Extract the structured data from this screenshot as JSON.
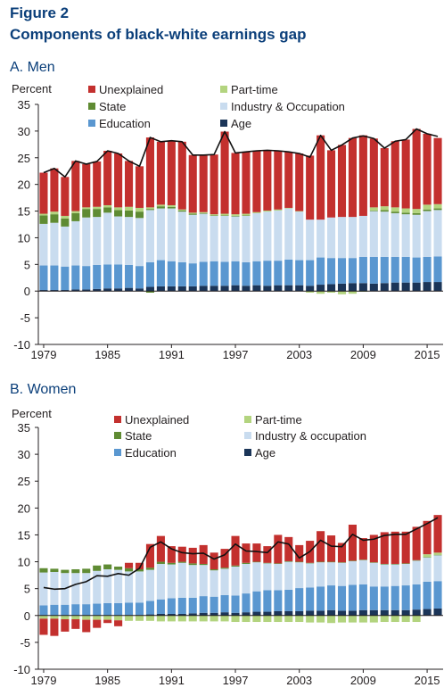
{
  "figure_label": "Figure 2",
  "figure_title": "Components of black-white earnings gap",
  "colors": {
    "Unexplained": "#c3302e",
    "Part-time": "#b3d47f",
    "State": "#5f8b33",
    "Industry": "#c9dcef",
    "Education": "#5a97d0",
    "Age": "#1b3558",
    "line": "#111111"
  },
  "chart_data": [
    {
      "type": "bar",
      "stacked": true,
      "panel_title": "A. Men",
      "ylabel": "Percent",
      "ylim": [
        -10,
        35
      ],
      "yticks": [
        -10,
        -5,
        0,
        5,
        10,
        15,
        20,
        25,
        30,
        35
      ],
      "x": [
        1979,
        1980,
        1981,
        1982,
        1983,
        1984,
        1985,
        1986,
        1987,
        1988,
        1989,
        1990,
        1991,
        1992,
        1993,
        1994,
        1995,
        1996,
        1997,
        1998,
        1999,
        2000,
        2001,
        2002,
        2003,
        2004,
        2005,
        2006,
        2007,
        2008,
        2009,
        2010,
        2011,
        2012,
        2013,
        2014,
        2015,
        2016
      ],
      "xticks": [
        1979,
        1985,
        1991,
        1997,
        2003,
        2009,
        2015
      ],
      "legend": [
        {
          "key": "Unexplained",
          "label": "Unexplained"
        },
        {
          "key": "Part-time",
          "label": "Part-time"
        },
        {
          "key": "State",
          "label": "State"
        },
        {
          "key": "Industry",
          "label": "Industry & Occupation"
        },
        {
          "key": "Education",
          "label": "Education"
        },
        {
          "key": "Age",
          "label": "Age"
        }
      ],
      "series": [
        {
          "key": "Age",
          "values": [
            0.2,
            0.2,
            0.2,
            0.3,
            0.3,
            0.4,
            0.5,
            0.5,
            0.6,
            0.5,
            0.8,
            0.9,
            0.9,
            0.9,
            0.9,
            1.0,
            1.0,
            1.0,
            1.1,
            1.0,
            1.1,
            1.0,
            1.1,
            1.1,
            1.1,
            1.0,
            1.2,
            1.3,
            1.4,
            1.5,
            1.5,
            1.4,
            1.5,
            1.6,
            1.6,
            1.6,
            1.7,
            1.7
          ]
        },
        {
          "key": "Education",
          "values": [
            4.6,
            4.6,
            4.4,
            4.5,
            4.4,
            4.5,
            4.5,
            4.5,
            4.3,
            4.2,
            4.6,
            4.9,
            4.7,
            4.5,
            4.3,
            4.5,
            4.6,
            4.5,
            4.5,
            4.4,
            4.5,
            4.7,
            4.6,
            4.8,
            4.7,
            4.8,
            5.1,
            4.9,
            4.8,
            4.7,
            4.9,
            5.0,
            4.9,
            4.8,
            4.8,
            4.7,
            4.7,
            4.8
          ]
        },
        {
          "key": "Industry",
          "values": [
            7.8,
            8.0,
            7.5,
            8.3,
            9.1,
            9.0,
            9.7,
            9.0,
            9.0,
            9.0,
            9.8,
            9.7,
            9.9,
            9.5,
            9.1,
            9.0,
            8.5,
            8.6,
            8.4,
            8.7,
            9.0,
            9.2,
            9.4,
            9.6,
            9.1,
            7.6,
            7.1,
            7.6,
            7.7,
            7.7,
            7.7,
            8.6,
            8.5,
            8.2,
            8.0,
            8.0,
            8.6,
            8.7
          ]
        },
        {
          "key": "State",
          "values": [
            1.6,
            1.6,
            1.5,
            1.5,
            1.6,
            1.5,
            1.0,
            1.2,
            1.2,
            1.2,
            0.2,
            0.4,
            0.3,
            0.2,
            0.2,
            0.1,
            0.1,
            0.1,
            0.1,
            0.1,
            0.0,
            0.0,
            0.0,
            0.0,
            0.0,
            0.0,
            0.0,
            0.0,
            0.0,
            0.0,
            0.0,
            0.1,
            0.3,
            0.3,
            0.3,
            0.3,
            0.3,
            0.3
          ]
        },
        {
          "key": "Part-time",
          "values": [
            0.3,
            0.5,
            0.5,
            0.4,
            0.3,
            0.4,
            0.4,
            0.5,
            0.7,
            0.7,
            0.3,
            0.3,
            0.3,
            0.2,
            0.2,
            0.2,
            0.2,
            0.3,
            0.3,
            0.3,
            0.2,
            0.2,
            0.2,
            0.1,
            0.1,
            0.0,
            0.0,
            0.0,
            0.0,
            0.0,
            0.0,
            0.6,
            0.7,
            0.8,
            0.8,
            0.8,
            0.9,
            0.8
          ]
        },
        {
          "key": "Unexplained",
          "values": [
            7.7,
            8.1,
            7.3,
            9.4,
            8.1,
            8.5,
            10.2,
            10.1,
            8.6,
            7.8,
            13.1,
            11.8,
            12.1,
            12.7,
            10.8,
            10.7,
            11.2,
            15.4,
            11.5,
            11.6,
            11.5,
            11.3,
            11.0,
            10.5,
            10.8,
            12.0,
            15.8,
            12.6,
            13.5,
            14.8,
            15.1,
            12.9,
            10.9,
            12.4,
            12.9,
            15.0,
            13.3,
            12.4
          ]
        },
        {
          "key": "Part-time",
          "negative": true,
          "values": [
            0,
            0,
            0,
            0,
            0,
            0,
            0,
            0,
            0,
            0,
            0,
            0,
            0,
            0,
            0,
            0,
            0,
            0,
            0,
            0,
            0,
            0,
            0,
            0,
            0,
            -0.3,
            -0.5,
            -0.3,
            -0.6,
            -0.5,
            0,
            0,
            0,
            0,
            0,
            0,
            0,
            0
          ]
        },
        {
          "key": "State",
          "negative": true,
          "values": [
            0,
            0,
            0,
            0,
            0,
            0,
            0,
            0,
            0,
            0,
            -0.3,
            0,
            0,
            0,
            0,
            0,
            0,
            0,
            0,
            0,
            0,
            0,
            0,
            0,
            0,
            0,
            0,
            0,
            0,
            0,
            -0.1,
            0,
            0,
            0,
            0,
            0,
            0,
            0
          ]
        }
      ],
      "total_line": [
        22.2,
        23.0,
        21.4,
        24.4,
        23.8,
        24.3,
        26.3,
        25.8,
        24.4,
        23.4,
        28.8,
        28.0,
        28.2,
        28.0,
        25.5,
        25.5,
        25.6,
        29.9,
        25.9,
        26.1,
        26.3,
        26.4,
        26.3,
        26.1,
        25.8,
        25.1,
        29.2,
        26.4,
        27.4,
        28.7,
        29.1,
        28.6,
        26.8,
        28.1,
        28.4,
        30.4,
        29.5,
        29.0
      ]
    },
    {
      "type": "bar",
      "stacked": true,
      "panel_title": "B. Women",
      "ylabel": "Percent",
      "ylim": [
        -10,
        35
      ],
      "yticks": [
        -10,
        -5,
        0,
        5,
        10,
        15,
        20,
        25,
        30,
        35
      ],
      "x": [
        1979,
        1980,
        1981,
        1982,
        1983,
        1984,
        1985,
        1986,
        1987,
        1988,
        1989,
        1990,
        1991,
        1992,
        1993,
        1994,
        1995,
        1996,
        1997,
        1998,
        1999,
        2000,
        2001,
        2002,
        2003,
        2004,
        2005,
        2006,
        2007,
        2008,
        2009,
        2010,
        2011,
        2012,
        2013,
        2014,
        2015,
        2016
      ],
      "xticks": [
        1979,
        1985,
        1991,
        1997,
        2003,
        2009,
        2015
      ],
      "legend": [
        {
          "key": "Unexplained",
          "label": "Unexplained"
        },
        {
          "key": "Part-time",
          "label": "Part-time"
        },
        {
          "key": "State",
          "label": "State"
        },
        {
          "key": "Industry",
          "label": "Industry & occupation"
        },
        {
          "key": "Education",
          "label": "Education"
        },
        {
          "key": "Age",
          "label": "Age"
        }
      ],
      "series": [
        {
          "key": "Age",
          "values": [
            0.0,
            0.0,
            0.0,
            0.0,
            0.0,
            0.0,
            0.0,
            0.0,
            0.1,
            0.1,
            0.2,
            0.3,
            0.3,
            0.3,
            0.4,
            0.5,
            0.5,
            0.6,
            0.5,
            0.6,
            0.7,
            0.7,
            0.8,
            0.8,
            0.8,
            0.9,
            0.9,
            1.0,
            0.9,
            0.9,
            1.0,
            1.0,
            1.0,
            1.0,
            1.0,
            1.1,
            1.2,
            1.3
          ]
        },
        {
          "key": "Education",
          "values": [
            1.9,
            2.0,
            2.0,
            2.1,
            2.1,
            2.2,
            2.3,
            2.3,
            2.3,
            2.3,
            2.5,
            2.7,
            2.9,
            3.0,
            2.9,
            3.1,
            3.0,
            3.2,
            3.2,
            3.5,
            3.8,
            4.0,
            3.9,
            4.0,
            4.3,
            4.3,
            4.5,
            4.6,
            4.6,
            4.8,
            4.8,
            4.4,
            4.4,
            4.5,
            4.6,
            4.7,
            5.1,
            5.1
          ]
        },
        {
          "key": "Industry",
          "values": [
            6.1,
            6.1,
            5.9,
            5.8,
            5.8,
            6.1,
            6.3,
            6.2,
            5.8,
            5.8,
            5.8,
            6.6,
            6.3,
            6.5,
            6.1,
            5.8,
            4.9,
            4.9,
            5.4,
            5.5,
            5.4,
            5.0,
            4.9,
            5.2,
            4.8,
            4.5,
            4.5,
            4.3,
            4.3,
            4.4,
            4.5,
            4.4,
            4.1,
            4.0,
            4.0,
            4.4,
            4.5,
            4.8
          ]
        },
        {
          "key": "State",
          "values": [
            0.8,
            0.6,
            0.6,
            0.7,
            0.8,
            1.0,
            0.9,
            0.6,
            0.6,
            0.4,
            0.4,
            0.4,
            0.3,
            0.2,
            0.3,
            0.2,
            0.2,
            0.2,
            0.2,
            0.2,
            0.1,
            0.1,
            0.1,
            0.1,
            0.1,
            0.1,
            0.1,
            0.1,
            0.1,
            0.1,
            0.1,
            0.1,
            0.1,
            0.1,
            0.1,
            0.1,
            0.1,
            0.1
          ]
        },
        {
          "key": "Part-time",
          "values": [
            0,
            0,
            0,
            0,
            0,
            0,
            0,
            0,
            0,
            0,
            0,
            0,
            0,
            0,
            0,
            0,
            0,
            0,
            0,
            0,
            0,
            0,
            0,
            0,
            0,
            0,
            0,
            0,
            0,
            0,
            0,
            0,
            0,
            0,
            0,
            0,
            0.5,
            0.4
          ]
        },
        {
          "key": "Unexplained",
          "values": [
            0,
            0,
            0,
            0,
            0,
            0,
            0,
            0,
            1.0,
            1.2,
            4.4,
            4.8,
            3.1,
            2.8,
            2.9,
            3.5,
            3.1,
            3.5,
            5.5,
            3.6,
            3.4,
            3.1,
            5.3,
            4.5,
            3.1,
            4.1,
            5.7,
            4.9,
            3.6,
            6.7,
            4.0,
            5.1,
            5.9,
            6.0,
            5.9,
            6.2,
            6.2,
            7.0
          ]
        },
        {
          "key": "Part-time",
          "negative": true,
          "values": [
            -0.6,
            -0.6,
            -0.7,
            -0.7,
            -0.8,
            -0.8,
            -0.8,
            -0.9,
            -1.0,
            -1.0,
            -1.0,
            -1.1,
            -1.1,
            -1.1,
            -1.1,
            -1.1,
            -1.1,
            -1.1,
            -1.2,
            -1.2,
            -1.2,
            -1.2,
            -1.2,
            -1.2,
            -1.2,
            -1.3,
            -1.3,
            -1.4,
            -1.3,
            -1.3,
            -1.3,
            -1.3,
            -1.2,
            -1.2,
            -1.2,
            -1.2,
            0,
            0
          ]
        },
        {
          "key": "Unexplained",
          "negative": true,
          "values": [
            -3.0,
            -3.2,
            -2.3,
            -1.8,
            -2.3,
            -1.5,
            -0.6,
            -1.1,
            0,
            0,
            0,
            0,
            0,
            0,
            0,
            0,
            0,
            0,
            0,
            0,
            0,
            0,
            0,
            0,
            0,
            0,
            0,
            0,
            0,
            0,
            0,
            0,
            0,
            0,
            0,
            0,
            0,
            0
          ]
        }
      ],
      "total_line": [
        5.2,
        4.9,
        5.0,
        5.8,
        6.3,
        7.4,
        7.3,
        7.8,
        7.5,
        8.8,
        12.7,
        13.7,
        12.4,
        11.7,
        11.5,
        11.6,
        10.5,
        11.3,
        13.3,
        12.0,
        11.9,
        11.7,
        13.7,
        13.3,
        10.7,
        11.9,
        14.0,
        12.9,
        12.8,
        15.1,
        14.0,
        14.2,
        14.9,
        15.1,
        15.1,
        16.1,
        17.1,
        18.2
      ]
    }
  ]
}
